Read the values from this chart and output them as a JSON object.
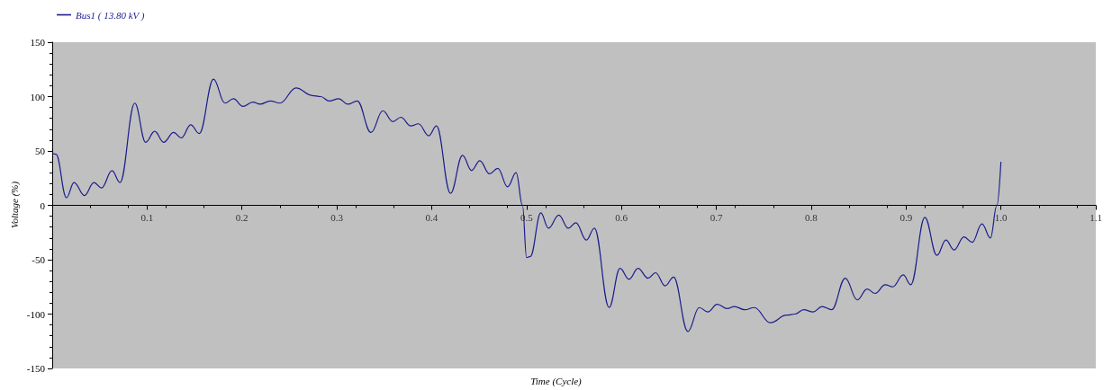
{
  "chart_data": {
    "type": "line",
    "xlabel": "Time (Cycle)",
    "ylabel": "Voltage (%)",
    "xlim": [
      0,
      1.1
    ],
    "xticks": [
      0.1,
      0.2,
      0.3,
      0.4,
      0.5,
      0.6,
      0.7,
      0.8,
      0.9,
      {
        "value": 1.0,
        "label": "1.0"
      },
      1.1
    ],
    "ylim": [
      -150,
      150
    ],
    "yticks": [
      -150,
      -100,
      -50,
      0,
      50,
      100,
      150
    ],
    "grid": false,
    "legend": "top left",
    "marker": "none",
    "line_style": "solid",
    "series": [
      {
        "name": "Bus1 ( 13.80 kV )",
        "color": "#1c1c8e",
        "x": [
          0,
          0.004,
          0.015,
          0.023,
          0.034,
          0.044,
          0.052,
          0.063,
          0.0715,
          0.087,
          0.0985,
          0.108,
          0.1175,
          0.128,
          0.136,
          0.146,
          0.155,
          0.17,
          0.182,
          0.191,
          0.201,
          0.2115,
          0.219,
          0.23,
          0.24,
          0.257,
          0.274,
          0.283,
          0.292,
          0.302,
          0.3115,
          0.3215,
          0.336,
          0.3485,
          0.359,
          0.3675,
          0.378,
          0.386,
          0.397,
          0.405,
          0.4198,
          0.4325,
          0.442,
          0.4507,
          0.461,
          0.4697,
          0.48,
          0.489,
          0.4957,
          0.5,
          0.504,
          0.515,
          0.523,
          0.534,
          0.544,
          0.552,
          0.563,
          0.5715,
          0.587,
          0.5985,
          0.608,
          0.6175,
          0.628,
          0.636,
          0.646,
          0.655,
          0.67,
          0.682,
          0.691,
          0.701,
          0.7115,
          0.719,
          0.73,
          0.74,
          0.757,
          0.774,
          0.783,
          0.792,
          0.802,
          0.8115,
          0.8215,
          0.836,
          0.8485,
          0.859,
          0.8675,
          0.878,
          0.886,
          0.897,
          0.905,
          0.9198,
          0.9325,
          0.942,
          0.9507,
          0.961,
          0.9697,
          0.98,
          0.989,
          0.9957,
          1.0
        ],
        "values": [
          48,
          47,
          7,
          21,
          9,
          21,
          16,
          32,
          21,
          94,
          58,
          68,
          58,
          67,
          62,
          74,
          66,
          116,
          94,
          98,
          91,
          95,
          93,
          96,
          94,
          108,
          101,
          100,
          96,
          98,
          93,
          96,
          67,
          87,
          77,
          81,
          73,
          75,
          64,
          73,
          11,
          46,
          32,
          41,
          29,
          34,
          17,
          30,
          0,
          -48,
          -47,
          -7,
          -21,
          -9,
          -21,
          -16,
          -32,
          -21,
          -94,
          -58,
          -68,
          -58,
          -67,
          -62,
          -74,
          -66,
          -116,
          -94,
          -98,
          -91,
          -95,
          -93,
          -96,
          -94,
          -108,
          -101,
          -100,
          -96,
          -98,
          -93,
          -96,
          -67,
          -87,
          -77,
          -81,
          -73,
          -75,
          -64,
          -73,
          -11,
          -46,
          -32,
          -41,
          -29,
          -34,
          -17,
          -30,
          0,
          40
        ]
      }
    ]
  }
}
